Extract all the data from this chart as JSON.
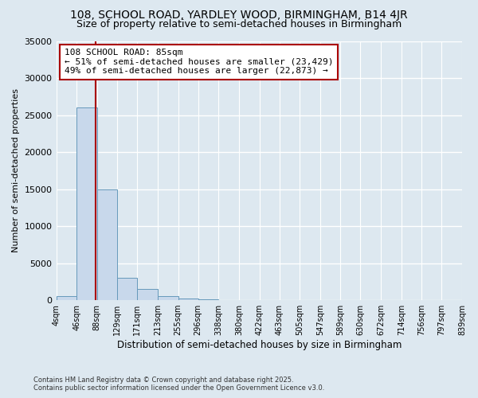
{
  "title1": "108, SCHOOL ROAD, YARDLEY WOOD, BIRMINGHAM, B14 4JR",
  "title2": "Size of property relative to semi-detached houses in Birmingham",
  "xlabel": "Distribution of semi-detached houses by size in Birmingham",
  "ylabel": "Number of semi-detached properties",
  "annotation_title": "108 SCHOOL ROAD: 85sqm",
  "annotation_line1": "← 51% of semi-detached houses are smaller (23,429)",
  "annotation_line2": "49% of semi-detached houses are larger (22,873) →",
  "property_size": 85,
  "footer1": "Contains HM Land Registry data © Crown copyright and database right 2025.",
  "footer2": "Contains public sector information licensed under the Open Government Licence v3.0.",
  "bins": [
    4,
    46,
    88,
    129,
    171,
    213,
    255,
    296,
    338,
    380,
    422,
    463,
    505,
    547,
    589,
    630,
    672,
    714,
    756,
    797,
    839
  ],
  "bin_labels": [
    "4sqm",
    "46sqm",
    "88sqm",
    "129sqm",
    "171sqm",
    "213sqm",
    "255sqm",
    "296sqm",
    "338sqm",
    "380sqm",
    "422sqm",
    "463sqm",
    "505sqm",
    "547sqm",
    "589sqm",
    "630sqm",
    "672sqm",
    "714sqm",
    "756sqm",
    "797sqm",
    "839sqm"
  ],
  "counts": [
    500,
    26000,
    15000,
    3000,
    1500,
    500,
    200,
    100,
    50,
    30,
    20,
    10,
    8,
    5,
    4,
    3,
    2,
    1,
    1,
    1
  ],
  "bar_color": "#c8d8eb",
  "bar_edge_color": "#6699bb",
  "vline_color": "#aa0000",
  "ylim": [
    0,
    35000
  ],
  "yticks": [
    0,
    5000,
    10000,
    15000,
    20000,
    25000,
    30000,
    35000
  ],
  "bg_color": "#dde8f0",
  "grid_color": "#ffffff",
  "title_fontsize": 10,
  "subtitle_fontsize": 9,
  "annotation_box_color": "#ffffff",
  "annotation_box_edge": "#aa0000"
}
